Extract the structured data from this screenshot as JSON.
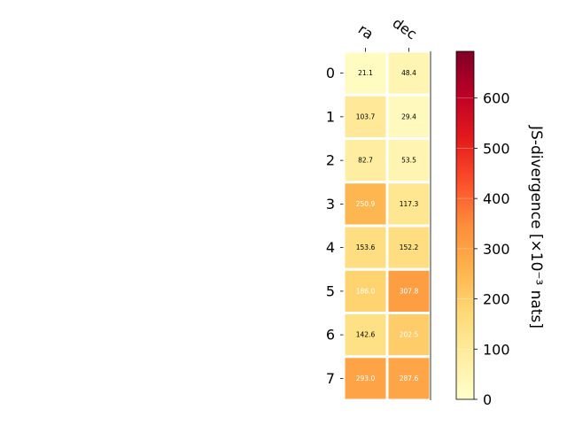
{
  "chart_data": {
    "type": "heatmap",
    "columns": [
      "ra",
      "dec"
    ],
    "rows": [
      "0",
      "1",
      "2",
      "3",
      "4",
      "5",
      "6",
      "7"
    ],
    "values": [
      [
        21.1,
        48.4
      ],
      [
        103.7,
        29.4
      ],
      [
        82.7,
        53.5
      ],
      [
        250.9,
        117.3
      ],
      [
        153.6,
        152.2
      ],
      [
        186.0,
        307.8
      ],
      [
        142.6,
        202.5
      ],
      [
        293.0,
        287.6
      ]
    ],
    "value_labels": [
      [
        "21.1",
        "48.4"
      ],
      [
        "103.7",
        "29.4"
      ],
      [
        "82.7",
        "53.5"
      ],
      [
        "250.9",
        "117.3"
      ],
      [
        "153.6",
        "152.2"
      ],
      [
        "186.0",
        "307.8"
      ],
      [
        "142.6",
        "202.5"
      ],
      [
        "293.0",
        "287.6"
      ]
    ],
    "colormap": "YlOrRd",
    "colorbar": {
      "label": "JS-divergence [×10⁻³ nats]",
      "range": [
        0,
        693
      ],
      "ticks": [
        0,
        100,
        200,
        300,
        400,
        500,
        600
      ],
      "tick_labels": [
        "0",
        "100",
        "200",
        "300",
        "400",
        "500",
        "600"
      ]
    },
    "grid": false,
    "text_color_threshold": 180
  },
  "colors": {
    "cell_border": "#ffffff",
    "dark_text": "#000000",
    "light_text": "#ffffff",
    "axis": "#000000"
  }
}
